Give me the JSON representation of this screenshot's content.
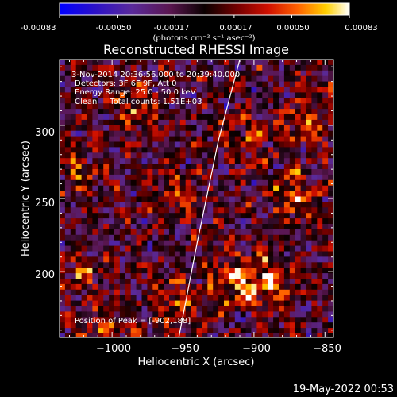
{
  "colorbar": {
    "ticks": [
      "-0.00083",
      "-0.00050",
      "-0.00017",
      "0.00017",
      "0.00050",
      "0.00083"
    ],
    "tick_values": [
      -0.00083,
      -0.0005,
      -0.00017,
      0.00017,
      0.0005,
      0.00083
    ],
    "range": [
      -0.00083,
      0.00083
    ],
    "unit_label": "(photons cm⁻² s⁻¹ asec⁻²)"
  },
  "chart_data": {
    "type": "heatmap",
    "title": "Reconstructed RHESSI Image",
    "xlabel": "Heliocentric X (arcsec)",
    "ylabel": "Heliocentric Y (arcsec)",
    "xlim": [
      -1037,
      -844
    ],
    "ylim": [
      155,
      345
    ],
    "x_ticks": [
      -1000,
      -950,
      -900,
      -850
    ],
    "x_tick_labels": [
      "−1000",
      "−950",
      "−900",
      "−850"
    ],
    "y_ticks": [
      200,
      250,
      300
    ],
    "y_tick_labels": [
      "200",
      "250",
      "300"
    ],
    "grid": false,
    "colormap": "rhessi-blue-purple-red-yellow-white",
    "limb_curve": [
      [
        -953,
        155
      ],
      [
        -940,
        220
      ],
      [
        -925,
        290
      ],
      [
        -910,
        345
      ]
    ],
    "hotspots": [
      {
        "x": -915,
        "y": 195,
        "value": 0.0008
      },
      {
        "x": -890,
        "y": 192,
        "value": 0.0008
      },
      {
        "x": -985,
        "y": 310,
        "value": 0.0005
      },
      {
        "x": -1025,
        "y": 270,
        "value": 0.0004
      },
      {
        "x": -1020,
        "y": 200,
        "value": 0.0004
      },
      {
        "x": -960,
        "y": 250,
        "value": 0.0005
      },
      {
        "x": -870,
        "y": 250,
        "value": 0.0006
      },
      {
        "x": -860,
        "y": 305,
        "value": 0.0005
      },
      {
        "x": -900,
        "y": 290,
        "value": 0.0004
      },
      {
        "x": -955,
        "y": 180,
        "value": 0.0005
      },
      {
        "x": -1000,
        "y": 160,
        "value": 0.0005
      }
    ]
  },
  "annotations": {
    "time_range": "3-Nov-2014 20:36:56.000 to 20:39:40.000",
    "detectors": "Detectors: 3F 6F 9F, Att 0",
    "energy": "Energy Range: 25.0 - 50.0 keV",
    "clean": "Clean     Total counts: 1.51E+03",
    "peak": "Position of Peak = [-902,188]"
  },
  "footer": {
    "date": "19-May-2022 00:53"
  }
}
